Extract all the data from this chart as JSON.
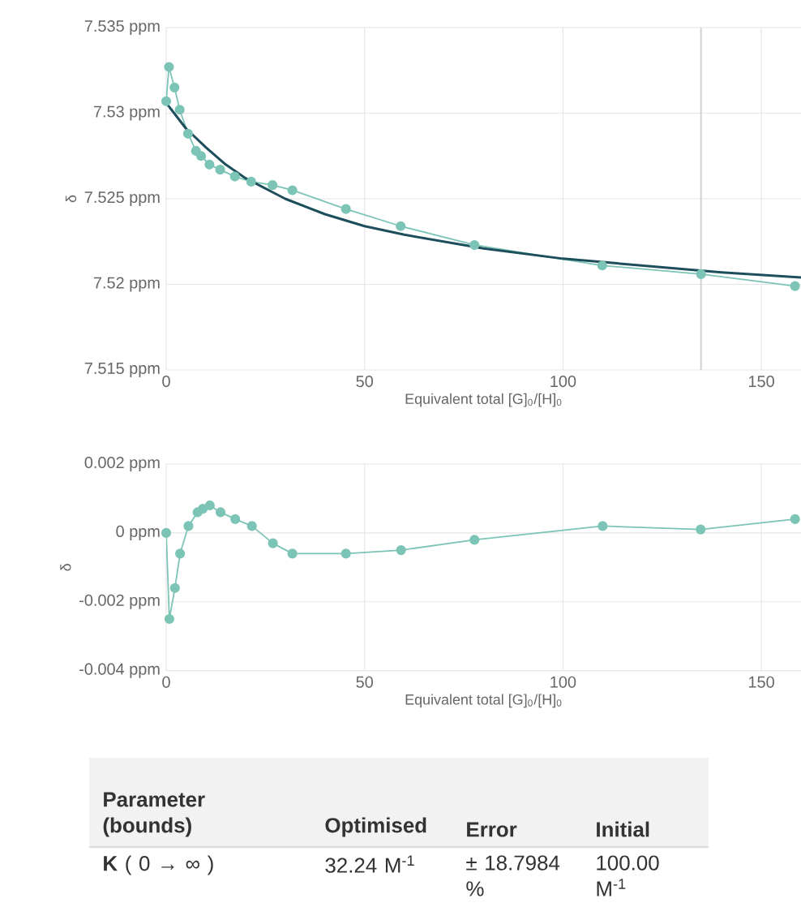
{
  "chart_data": [
    {
      "type": "line",
      "ylabel": "δ",
      "xlabel": "Equivalent total [G]$_{0}$/[H]$_{0}$",
      "xlim": [
        0,
        160
      ],
      "xticks": [
        0,
        50,
        100,
        150
      ],
      "ylim": [
        7.515,
        7.535
      ],
      "yticks": [
        {
          "value": 7.515,
          "label": "7.515 ppm"
        },
        {
          "value": 7.52,
          "label": "7.52 ppm"
        },
        {
          "value": 7.525,
          "label": "7.525 ppm"
        },
        {
          "value": 7.53,
          "label": "7.53 ppm"
        },
        {
          "value": 7.535,
          "label": "7.535 ppm"
        }
      ],
      "grid": true,
      "ref_lines": [
        {
          "axis": "x",
          "value": 134.8,
          "color": "#d0d0d0"
        }
      ],
      "series": [
        {
          "type": "line",
          "marker": "circle",
          "color": "#7cc4b6",
          "x": [
            0,
            0.7,
            2.1,
            3.4,
            5.5,
            7.5,
            8.8,
            10.9,
            13.6,
            17.3,
            21.4,
            26.8,
            31.8,
            45.3,
            59.1,
            77.7,
            109.9,
            134.8,
            158.5
          ],
          "values": [
            7.5307,
            7.5327,
            7.5315,
            7.5302,
            7.5288,
            7.5278,
            7.5275,
            7.527,
            7.5267,
            7.5263,
            7.526,
            7.5258,
            7.5255,
            7.5244,
            7.5234,
            7.5223,
            7.5211,
            7.5206,
            7.5199
          ]
        },
        {
          "type": "line",
          "marker": "none",
          "color": "#1d4e5c",
          "x": [
            0,
            2,
            5,
            10,
            15,
            20,
            30,
            40,
            50,
            60,
            80,
            100,
            120,
            140,
            160
          ],
          "values": [
            7.5306,
            7.53,
            7.5291,
            7.528,
            7.527,
            7.5262,
            7.525,
            7.5241,
            7.5234,
            7.5229,
            7.5221,
            7.5215,
            7.5211,
            7.5207,
            7.5204
          ]
        }
      ]
    },
    {
      "type": "line",
      "ylabel": "δ",
      "xlabel": "Equivalent total [G]$_{0}$/[H]$_{0}$",
      "xlim": [
        0,
        160
      ],
      "xticks": [
        0,
        50,
        100,
        150
      ],
      "ylim": [
        -0.004,
        0.002
      ],
      "yticks": [
        {
          "value": -0.004,
          "label": "-0.004 ppm"
        },
        {
          "value": -0.002,
          "label": "-0.002 ppm"
        },
        {
          "value": 0,
          "label": "0 ppm"
        },
        {
          "value": 0.002,
          "label": "0.002 ppm"
        }
      ],
      "grid": true,
      "series": [
        {
          "type": "line",
          "marker": "circle",
          "color": "#7cc4b6",
          "x": [
            0,
            0.8,
            2.2,
            3.5,
            5.6,
            7.9,
            9.2,
            11,
            13.7,
            17.4,
            21.6,
            26.9,
            31.8,
            45.3,
            59.2,
            77.7,
            110,
            134.7,
            158.5
          ],
          "values": [
            0,
            -0.0025,
            -0.0016,
            -0.0006,
            0.0002,
            0.0006,
            0.0007,
            0.0008,
            0.0006,
            0.0004,
            0.0002,
            -0.0003,
            -0.0006,
            -0.0006,
            -0.0005,
            -0.0002,
            0.0002,
            0.0001,
            0.0004
          ]
        }
      ]
    },
    {
      "type": "other",
      "annotations": [
        "Parameter (bounds)",
        "Optimised",
        "Error",
        "Initial",
        "**K** ( 0 → ∞ )",
        "32.24 M$^{-1}$",
        "± 18.7984 %",
        "100.00 M$^{-1}$"
      ]
    }
  ]
}
